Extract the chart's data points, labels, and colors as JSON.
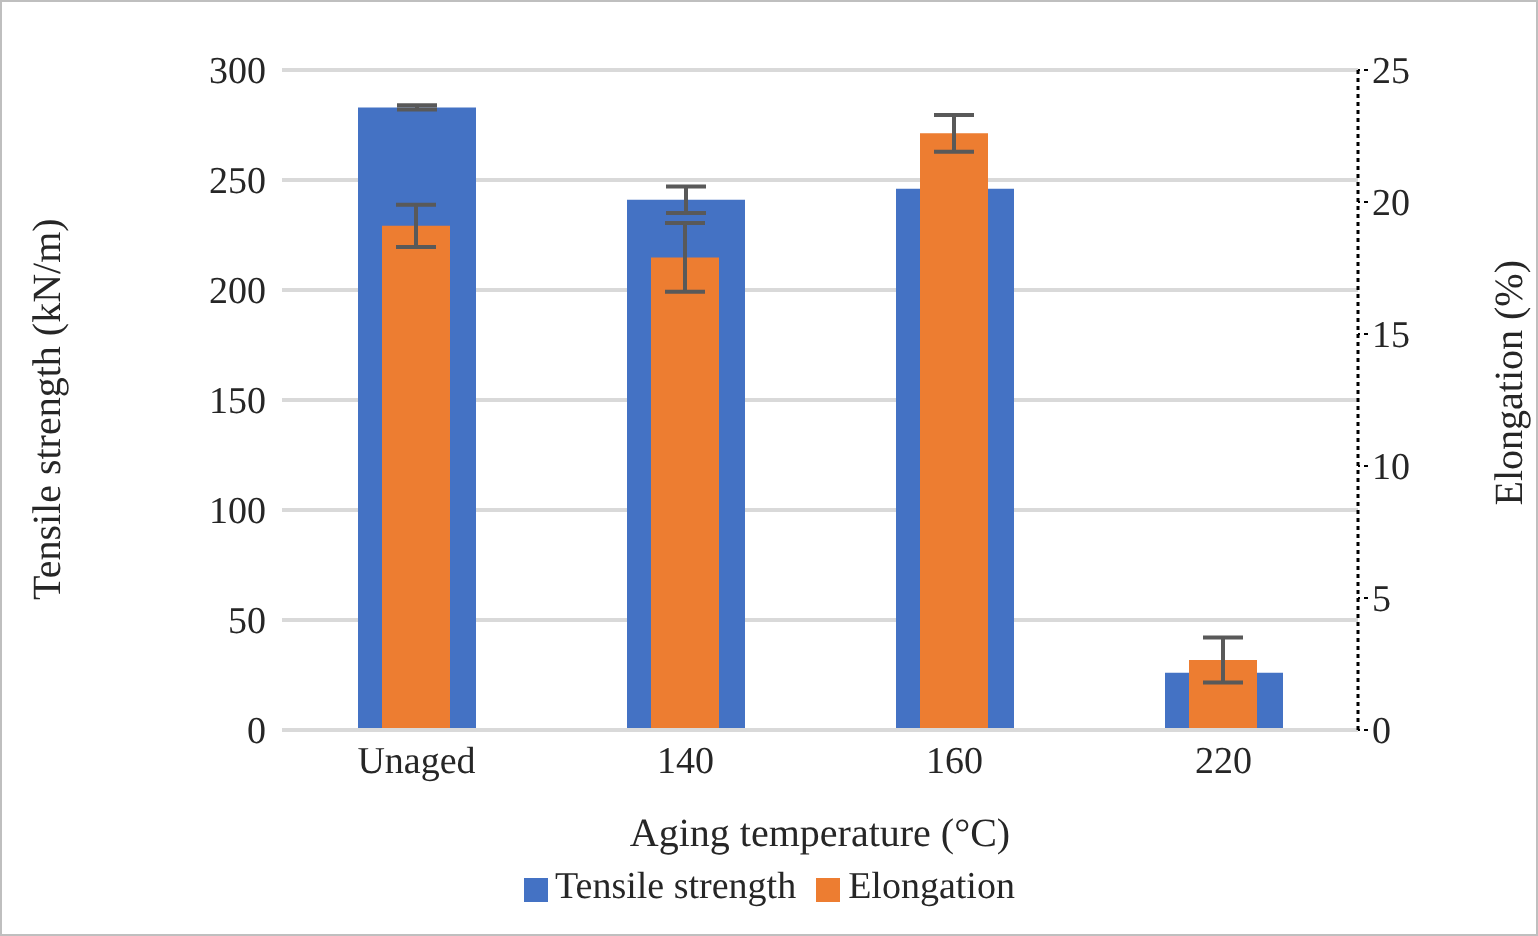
{
  "chart_data": {
    "type": "bar",
    "xlabel": "Aging temperature (°C)",
    "ylabel": "Tensile strength (kN/m)",
    "y2label": "Elongation (%)",
    "categories": [
      "Unaged",
      "140",
      "160",
      "220"
    ],
    "series": [
      {
        "name": "Tensile strength",
        "color": "#4472c4",
        "values": [
          283,
          241,
          246,
          26
        ],
        "errors": [
          1,
          6,
          null,
          null
        ]
      },
      {
        "name": "Elongation",
        "color": "#ed7d31",
        "values": [
          19.1,
          17.9,
          22.6,
          2.65
        ],
        "errors": [
          0.8,
          1.3,
          0.7,
          0.85
        ],
        "axis": "y2"
      }
    ],
    "ylim": [
      0,
      300
    ],
    "yticks": [
      0,
      50,
      100,
      150,
      200,
      250,
      300
    ],
    "y2lim": [
      0,
      25
    ],
    "y2ticks": [
      0,
      5,
      10,
      15,
      20,
      25
    ],
    "grid": "y",
    "legend": "bottom"
  }
}
